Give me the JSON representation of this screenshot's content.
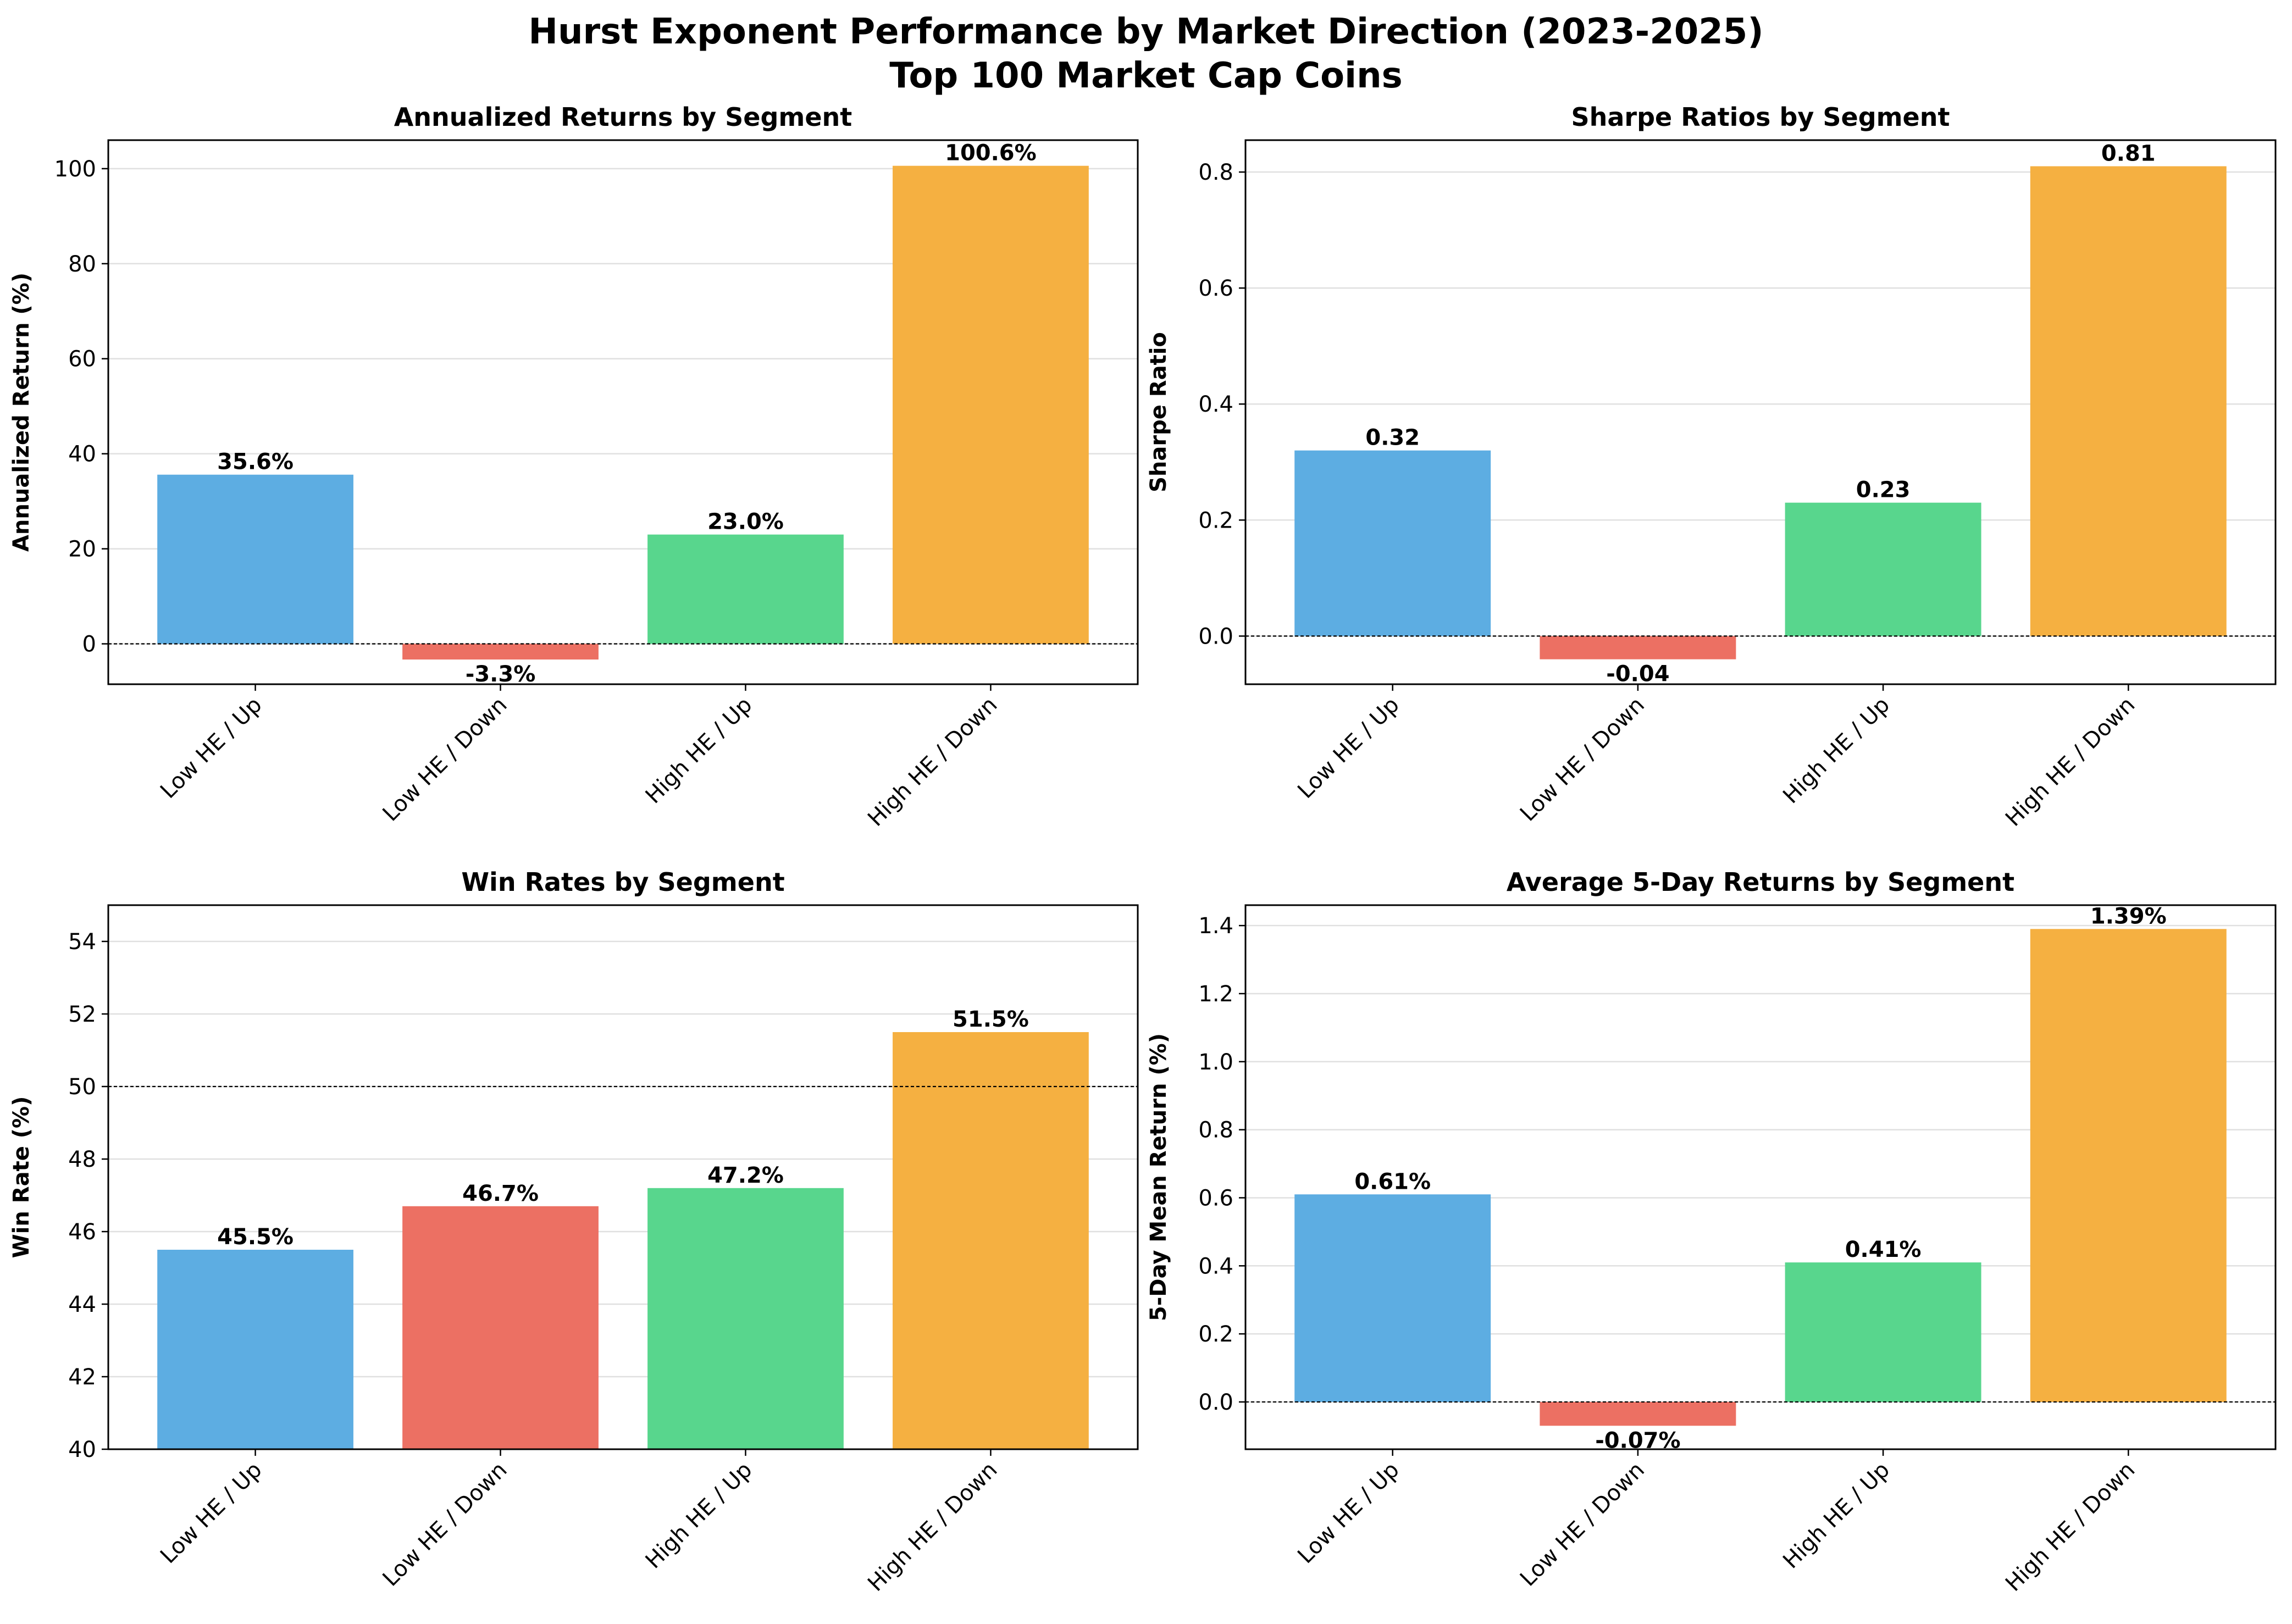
{
  "figure": {
    "title_line1": "Hurst Exponent Performance by Market Direction (2023-2025)",
    "title_line2": "Top 100 Market Cap Coins"
  },
  "colors": {
    "low_he_up": "#5DADE2",
    "low_he_down": "#EC7063",
    "high_he_up": "#58D68D",
    "high_he_down": "#F5B041",
    "gridline": "#e0e0e0",
    "reference_line": "#000000"
  },
  "chart_data": [
    {
      "type": "bar",
      "title": "Annualized Returns by Segment",
      "xlabel": "",
      "ylabel": "Annualized Return (%)",
      "categories": [
        "Low HE / Up",
        "Low HE / Down",
        "High HE / Up",
        "High HE / Down"
      ],
      "values": [
        35.6,
        -3.3,
        23.0,
        100.6
      ],
      "value_labels": [
        "35.6%",
        "-3.3%",
        "23.0%",
        "100.6%"
      ],
      "ylim": [
        -8.5,
        106
      ],
      "yticks": [
        0,
        20,
        40,
        60,
        80,
        100
      ],
      "ytick_labels": [
        "0",
        "20",
        "40",
        "60",
        "80",
        "100"
      ],
      "reference_line": 0,
      "grid": "horizontal"
    },
    {
      "type": "bar",
      "title": "Sharpe Ratios by Segment",
      "xlabel": "",
      "ylabel": "Sharpe Ratio",
      "categories": [
        "Low HE / Up",
        "Low HE / Down",
        "High HE / Up",
        "High HE / Down"
      ],
      "values": [
        0.32,
        -0.04,
        0.23,
        0.81
      ],
      "value_labels": [
        "0.32",
        "-0.04",
        "0.23",
        "0.81"
      ],
      "ylim": [
        -0.083,
        0.855
      ],
      "yticks": [
        0.0,
        0.2,
        0.4,
        0.6,
        0.8
      ],
      "ytick_labels": [
        "0.0",
        "0.2",
        "0.4",
        "0.6",
        "0.8"
      ],
      "reference_line": 0,
      "grid": "horizontal"
    },
    {
      "type": "bar",
      "title": "Win Rates by Segment",
      "xlabel": "",
      "ylabel": "Win Rate (%)",
      "categories": [
        "Low HE / Up",
        "Low HE / Down",
        "High HE / Up",
        "High HE / Down"
      ],
      "values": [
        45.5,
        46.7,
        47.2,
        51.5
      ],
      "value_labels": [
        "45.5%",
        "46.7%",
        "47.2%",
        "51.5%"
      ],
      "ylim": [
        40,
        55
      ],
      "yticks": [
        40,
        42,
        44,
        46,
        48,
        50,
        52,
        54
      ],
      "ytick_labels": [
        "40",
        "42",
        "44",
        "46",
        "48",
        "50",
        "52",
        "54"
      ],
      "reference_line": 50,
      "grid": "horizontal"
    },
    {
      "type": "bar",
      "title": "Average 5-Day Returns by Segment",
      "xlabel": "",
      "ylabel": "5-Day Mean Return (%)",
      "categories": [
        "Low HE / Up",
        "Low HE / Down",
        "High HE / Up",
        "High HE / Down"
      ],
      "values": [
        0.61,
        -0.07,
        0.41,
        1.39
      ],
      "value_labels": [
        "0.61%",
        "-0.07%",
        "0.41%",
        "1.39%"
      ],
      "ylim": [
        -0.139,
        1.46
      ],
      "yticks": [
        0.0,
        0.2,
        0.4,
        0.6,
        0.8,
        1.0,
        1.2,
        1.4
      ],
      "ytick_labels": [
        "0.0",
        "0.2",
        "0.4",
        "0.6",
        "0.8",
        "1.0",
        "1.2",
        "1.4"
      ],
      "reference_line": 0,
      "grid": "horizontal"
    }
  ]
}
